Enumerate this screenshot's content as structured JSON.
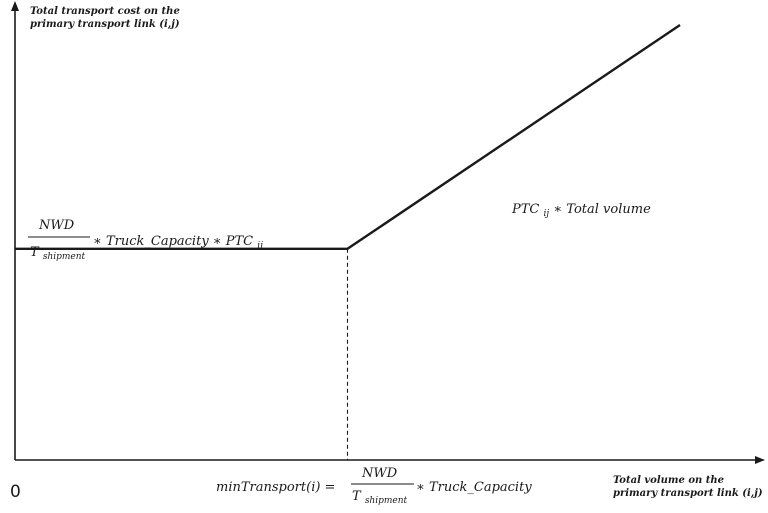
{
  "chart_data": {
    "type": "line",
    "title": "",
    "ylabel_line1": "Total transport cost on the",
    "ylabel_line2": "primary transport link (i,j)",
    "xlabel_line1": "Total volume on the",
    "xlabel_line2": "primary transport link (i,j)",
    "origin_label": "0",
    "series": [
      {
        "x": [
          0,
          1,
          2
        ],
        "y": [
          1,
          1,
          2.06
        ]
      }
    ],
    "breakpoint_x": 1,
    "x_range": [
      0,
      2.06
    ],
    "y_range": [
      0,
      2.15
    ],
    "grid": false,
    "legend": "none",
    "annotations": {
      "flat_numerator": "NWD",
      "flat_denominator_main": "T",
      "flat_denominator_sub": "shipment",
      "flat_rest_a": "∗ Truck_Capacity ∗ PTC",
      "flat_rest_sub": "ij",
      "slope_a": "PTC",
      "slope_sub": "ij",
      "slope_b": " ∗ Total volume",
      "min_prefix": "minTransport(i) =",
      "min_numerator": "NWD",
      "min_denominator_main": "T",
      "min_denominator_sub": "shipment",
      "min_rest": "∗ Truck_Capacity"
    },
    "colors": {
      "line": "#1a1a1a",
      "axis": "#1a1a1a"
    }
  }
}
